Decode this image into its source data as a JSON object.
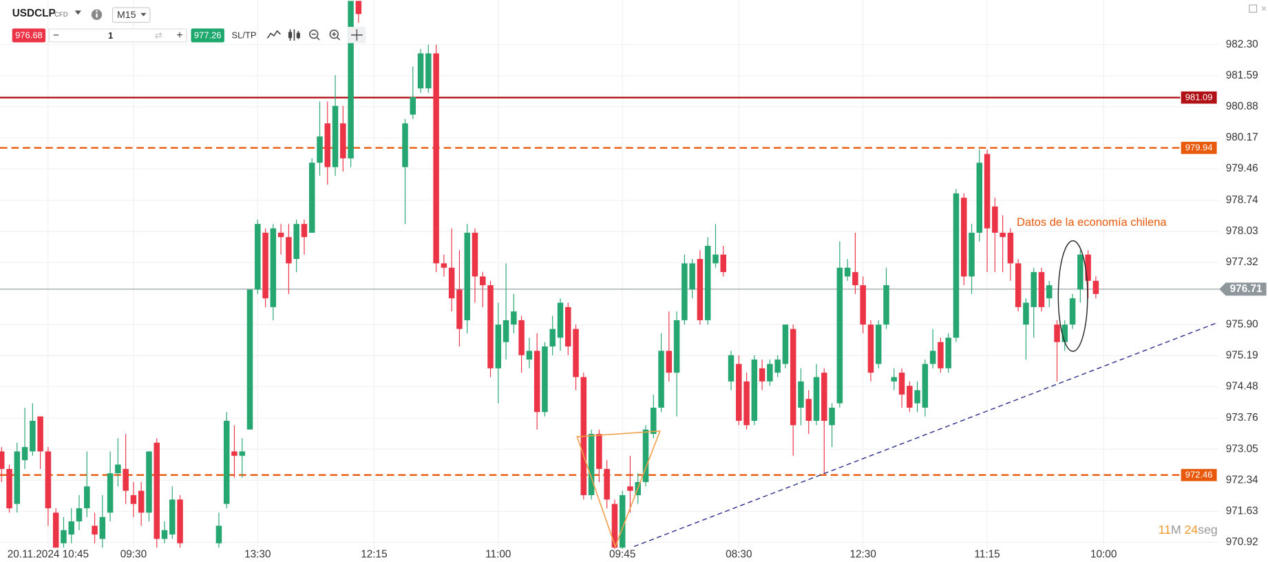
{
  "toolbar": {
    "instrument": "USDCLP",
    "instrument_type": "CFD",
    "timeframe": "M15",
    "sell_price": "976.68",
    "quantity": "1",
    "buy_price": "977.26",
    "sltp": "SL/TP"
  },
  "timer": {
    "minutes": "11",
    "minutes_unit": "M",
    "seconds": "24",
    "seconds_unit": "seg"
  },
  "chart_data": {
    "type": "candlestick",
    "up_color": "#26a671",
    "down_color": "#ec3447",
    "xlim": [
      -0.2,
      156.9
    ],
    "xticks": [
      {
        "value": 6,
        "label": "20.11.2024 10:45"
      },
      {
        "value": 17,
        "label": "09:30"
      },
      {
        "value": 33,
        "label": "13:30"
      },
      {
        "value": 48,
        "label": "12:15"
      },
      {
        "value": 64,
        "label": "11:00"
      },
      {
        "value": 80,
        "label": "09:45"
      },
      {
        "value": 95,
        "label": "08:30"
      },
      {
        "value": 111,
        "label": "12:30"
      },
      {
        "value": 127,
        "label": "11:15"
      },
      {
        "value": 142,
        "label": "10:00"
      }
    ],
    "ylim": [
      970.77,
      983.32
    ],
    "yticks": [
      {
        "value": 982.3,
        "label": "982.30"
      },
      981.59,
      980.88,
      980.17,
      979.46,
      978.74,
      978.03,
      977.32,
      {
        "value": 975.9,
        "label": "975.90"
      },
      975.19,
      974.48,
      973.76,
      973.05,
      972.34,
      971.63,
      970.92
    ],
    "grid": true,
    "series": [
      {
        "x": [
          0,
          1,
          2,
          3,
          4,
          5,
          6,
          7,
          8,
          9,
          10,
          11,
          12,
          13,
          14,
          15,
          16,
          17,
          18,
          19,
          20,
          21,
          22,
          23,
          28,
          29,
          30,
          31,
          32,
          33,
          34,
          35,
          36,
          37,
          38,
          39,
          40,
          41,
          42,
          43,
          44,
          45,
          46,
          52,
          53,
          54,
          55,
          56,
          57,
          58,
          59,
          60,
          61,
          62,
          63,
          64,
          65,
          66,
          67,
          68,
          69,
          70,
          71,
          72,
          73,
          74,
          75,
          76,
          77,
          78,
          79,
          80,
          81,
          82,
          83,
          84,
          85,
          86,
          87,
          88,
          89,
          90,
          91,
          92,
          93,
          94,
          95,
          96,
          97,
          98,
          99,
          100,
          101,
          102,
          103,
          104,
          105,
          106,
          107,
          108,
          109,
          110,
          111,
          112,
          113,
          114,
          115,
          116,
          117,
          118,
          119,
          120,
          121,
          122,
          123,
          124,
          125,
          126,
          127,
          128,
          129,
          130,
          131,
          132,
          133,
          134,
          135,
          136,
          137,
          138,
          139,
          140,
          141
        ],
        "open": [
          973.0,
          972.6,
          971.8,
          972.8,
          973.0,
          973.8,
          973.0,
          971.6,
          970.9,
          971.1,
          971.4,
          971.7,
          971.3,
          971.0,
          971.6,
          972.5,
          972.6,
          972.0,
          972.1,
          971.6,
          973.2,
          971.0,
          971.1,
          971.9,
          970.9,
          971.8,
          973.0,
          972.9,
          973.5,
          976.7,
          978.0,
          976.3,
          978.0,
          977.9,
          977.4,
          978.2,
          978.0,
          979.6,
          980.5,
          979.5,
          980.5,
          979.7,
          983.3,
          979.5,
          980.7,
          981.3,
          981.3,
          982.1,
          977.3,
          977.2,
          976.7,
          976.0,
          978.0,
          977.0,
          976.8,
          974.9,
          975.5,
          975.9,
          976.0,
          975.1,
          975.3,
          973.9,
          975.4,
          975.6,
          976.3,
          975.8,
          974.7,
          972.0,
          973.4,
          972.6,
          971.8,
          970.8,
          972.2,
          972.0,
          972.3,
          973.4,
          974.0,
          975.3,
          974.8,
          976.0,
          976.7,
          977.4,
          976.0,
          977.3,
          977.5,
          974.6,
          975.0,
          974.6,
          973.7,
          974.9,
          974.6,
          974.8,
          975.0,
          975.8,
          974.0,
          974.2,
          973.7,
          974.8,
          973.6,
          974.1,
          977.0,
          977.1,
          976.8,
          975.9,
          975.0,
          975.9,
          974.6,
          974.8,
          974.5,
          974.1,
          974.0,
          975.0,
          975.5,
          974.9,
          975.6,
          978.8,
          977.0,
          978.0,
          979.8,
          978.6,
          978.0,
          978.0,
          977.3,
          975.9,
          976.3,
          977.1,
          976.5,
          975.9,
          975.5,
          975.9,
          976.7,
          977.5,
          976.9
        ],
        "high": [
          973.1,
          972.7,
          973.2,
          974.0,
          974.1,
          973.8,
          973.1,
          971.7,
          971.5,
          971.7,
          972.0,
          973.0,
          971.6,
          972.0,
          973.0,
          973.3,
          973.4,
          972.3,
          972.3,
          973.0,
          973.3,
          971.4,
          972.2,
          972.0,
          971.6,
          973.9,
          973.6,
          973.3,
          976.7,
          978.3,
          978.1,
          978.2,
          978.2,
          978.2,
          978.3,
          978.3,
          979.7,
          981.0,
          981.0,
          981.6,
          980.9,
          983.3,
          983.3,
          980.6,
          981.8,
          982.2,
          982.3,
          982.3,
          977.5,
          978.1,
          977.6,
          978.2,
          978.1,
          977.1,
          976.9,
          976.4,
          977.3,
          976.6,
          976.1,
          975.6,
          975.7,
          975.5,
          976.1,
          976.5,
          976.4,
          975.9,
          974.8,
          973.5,
          973.5,
          972.8,
          971.9,
          972.1,
          972.9,
          972.5,
          973.6,
          974.3,
          975.7,
          976.2,
          976.2,
          977.5,
          977.4,
          977.6,
          977.9,
          978.2,
          977.7,
          975.3,
          975.2,
          974.8,
          975.2,
          975.1,
          975.1,
          975.2,
          975.9,
          975.9,
          974.9,
          974.4,
          975.0,
          974.9,
          974.1,
          977.8,
          977.4,
          978.0,
          977.0,
          976.0,
          976.0,
          977.2,
          974.9,
          974.9,
          974.6,
          974.6,
          975.1,
          975.8,
          975.6,
          975.7,
          979.0,
          978.9,
          978.2,
          979.9,
          979.9,
          978.8,
          978.4,
          978.1,
          977.4,
          976.5,
          977.2,
          977.2,
          976.9,
          976.0,
          976.0,
          976.6,
          977.6,
          977.6,
          977.0
        ],
        "low": [
          972.3,
          971.6,
          971.6,
          972.6,
          972.9,
          972.6,
          971.3,
          970.8,
          970.8,
          970.9,
          971.2,
          971.5,
          970.9,
          970.8,
          971.4,
          972.2,
          971.8,
          971.5,
          971.3,
          971.4,
          970.8,
          970.9,
          971.0,
          970.8,
          970.8,
          971.7,
          972.4,
          972.4,
          973.5,
          976.6,
          976.3,
          976.0,
          977.5,
          976.6,
          977.1,
          977.5,
          978.0,
          979.3,
          979.1,
          979.3,
          979.4,
          979.5,
          982.8,
          978.2,
          980.6,
          981.2,
          981.2,
          977.1,
          977.0,
          976.2,
          975.4,
          975.7,
          976.4,
          976.3,
          974.7,
          974.1,
          975.1,
          975.7,
          974.8,
          974.9,
          973.5,
          973.8,
          975.2,
          975.3,
          975.2,
          974.4,
          971.9,
          971.9,
          972.3,
          971.7,
          970.7,
          970.7,
          971.6,
          971.8,
          972.2,
          973.3,
          973.9,
          974.6,
          973.8,
          975.9,
          976.5,
          975.9,
          975.9,
          977.2,
          977.0,
          974.4,
          973.6,
          973.5,
          973.6,
          974.4,
          974.5,
          974.7,
          974.9,
          972.9,
          973.6,
          973.4,
          973.6,
          972.5,
          973.1,
          974.0,
          976.9,
          976.6,
          975.7,
          974.6,
          974.9,
          975.8,
          974.4,
          974.0,
          973.9,
          973.9,
          973.8,
          974.9,
          974.8,
          974.8,
          975.5,
          976.8,
          976.6,
          977.8,
          977.1,
          977.1,
          977.1,
          976.9,
          976.2,
          975.1,
          975.6,
          976.2,
          976.3,
          974.6,
          975.3,
          975.8,
          976.4,
          976.5,
          976.5
        ],
        "close": [
          972.6,
          971.7,
          973.0,
          973.1,
          973.7,
          973.0,
          971.7,
          970.8,
          971.2,
          971.4,
          971.7,
          972.2,
          971.1,
          971.5,
          972.5,
          972.7,
          972.1,
          971.8,
          971.6,
          973.0,
          971.0,
          971.2,
          971.9,
          970.9,
          971.3,
          973.7,
          972.9,
          973.0,
          976.7,
          978.2,
          976.5,
          978.1,
          977.9,
          977.3,
          978.2,
          977.9,
          979.6,
          980.2,
          979.5,
          980.9,
          979.7,
          983.3,
          983.0,
          980.5,
          981.1,
          982.1,
          982.1,
          977.3,
          977.2,
          976.5,
          975.8,
          978.0,
          977.0,
          976.8,
          974.9,
          975.9,
          976.0,
          976.2,
          975.2,
          975.3,
          973.9,
          975.4,
          975.8,
          976.4,
          975.4,
          974.7,
          972.0,
          973.4,
          972.6,
          971.9,
          970.8,
          972.0,
          972.1,
          972.3,
          973.5,
          974.0,
          975.3,
          974.8,
          976.0,
          977.3,
          977.3,
          976.0,
          977.7,
          977.5,
          977.1,
          975.2,
          973.7,
          973.6,
          975.1,
          974.6,
          975.0,
          975.1,
          975.9,
          973.6,
          974.6,
          973.7,
          974.7,
          973.7,
          974.0,
          977.2,
          977.2,
          976.8,
          975.9,
          974.8,
          975.9,
          976.8,
          974.7,
          974.3,
          974.0,
          974.4,
          975.0,
          975.3,
          974.9,
          975.6,
          978.9,
          977.0,
          978.0,
          979.6,
          978.1,
          978.0,
          977.9,
          977.3,
          976.3,
          976.4,
          977.1,
          976.3,
          976.8,
          975.5,
          975.9,
          976.5,
          977.5,
          976.9,
          976.6
        ]
      }
    ],
    "levels": [
      {
        "value": 981.09,
        "color": "#b01116",
        "style": "solid"
      },
      {
        "value": 979.94,
        "color": "#e8590c",
        "style": "dashed"
      },
      {
        "value": 972.46,
        "color": "#e8590c",
        "style": "dashed"
      },
      {
        "value": 976.71,
        "color": "#8d969b",
        "style": "current"
      }
    ],
    "annotations": [
      {
        "text": "Datos de la economía chilena"
      }
    ]
  }
}
